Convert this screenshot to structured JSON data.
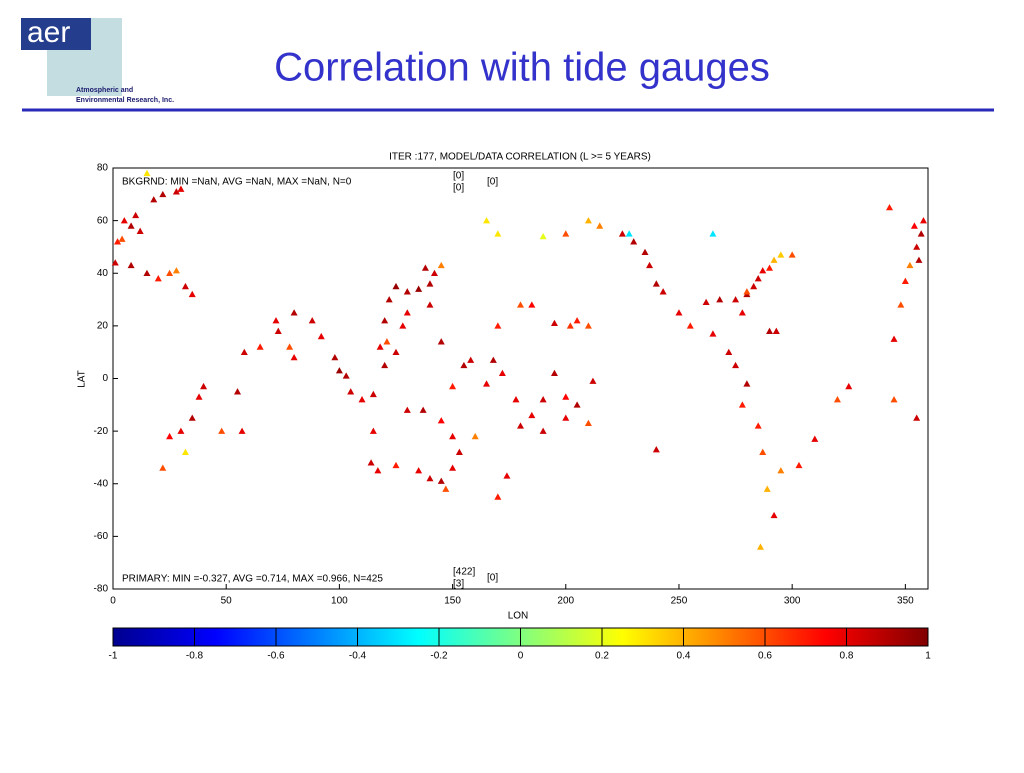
{
  "header": {
    "logo": "aer",
    "company_line1": "Atmospheric and",
    "company_line2": "Environmental Research, Inc.",
    "title": "Correlation with tide gauges"
  },
  "chart_data": {
    "type": "scatter",
    "title": "ITER :177, MODEL/DATA CORRELATION (L >= 5 YEARS)",
    "x_label": "LON",
    "y_label": "LAT",
    "annotations": [
      "BKGRND: MIN =NaN, AVG =NaN, MAX =NaN, N=0",
      "PRIMARY: MIN =-0.327, AVG =0.714, MAX =0.966, N=425"
    ],
    "bkgrnd_counts": [
      "[0]",
      "[0]",
      "[0]"
    ],
    "primary_counts": [
      "[422]",
      "[3]",
      "[0]"
    ],
    "xlim": [
      0,
      360
    ],
    "xticks": [
      0,
      50,
      100,
      150,
      200,
      250,
      300,
      350
    ],
    "ylim": [
      -80,
      80
    ],
    "yticks": [
      -80,
      -60,
      -40,
      -20,
      0,
      20,
      40,
      60,
      80
    ],
    "marker": "triangle",
    "x": [
      15,
      10,
      5,
      8,
      12,
      18,
      22,
      28,
      30,
      2,
      4,
      1,
      8,
      15,
      20,
      25,
      28,
      32,
      35,
      40,
      38,
      35,
      30,
      25,
      32,
      22,
      57,
      48,
      55,
      58,
      65,
      72,
      80,
      88,
      92,
      98,
      100,
      103,
      105,
      110,
      115,
      120,
      118,
      121,
      125,
      120,
      122,
      125,
      130,
      135,
      140,
      142,
      145,
      140,
      130,
      138,
      128,
      145,
      150,
      155,
      158,
      165,
      168,
      172,
      178,
      180,
      185,
      190,
      200,
      210,
      205,
      200,
      212,
      170,
      180,
      195,
      202,
      205,
      160,
      115,
      114,
      117,
      125,
      135,
      140,
      145,
      147,
      150,
      153,
      150,
      145,
      137,
      130,
      174,
      170,
      165,
      170,
      190,
      200,
      210,
      215,
      225,
      230,
      235,
      237,
      240,
      243,
      250,
      255,
      265,
      272,
      275,
      280,
      278,
      285,
      287,
      289,
      292,
      286,
      295,
      303,
      310,
      320,
      325,
      265,
      228,
      262,
      268,
      275,
      278,
      280,
      283,
      285,
      287,
      290,
      292,
      295,
      300,
      290,
      293,
      280,
      348,
      350,
      352,
      355,
      357,
      354,
      358,
      356,
      343,
      345,
      355,
      345,
      240,
      185,
      210,
      195,
      190,
      80,
      78,
      73
    ],
    "y": [
      78,
      62,
      60,
      58,
      56,
      68,
      70,
      71,
      72,
      52,
      53,
      44,
      43,
      40,
      38,
      40,
      41,
      35,
      32,
      -3,
      -7,
      -15,
      -20,
      -22,
      -28,
      -34,
      -20,
      -20,
      -5,
      10,
      12,
      22,
      25,
      22,
      16,
      8,
      3,
      1,
      -5,
      -8,
      -6,
      5,
      12,
      14,
      10,
      22,
      30,
      35,
      33,
      34,
      36,
      40,
      43,
      28,
      25,
      42,
      20,
      14,
      -3,
      5,
      7,
      -2,
      7,
      2,
      -8,
      -18,
      -14,
      -20,
      -15,
      -17,
      -10,
      -7,
      -1,
      20,
      28,
      21,
      20,
      22,
      -22,
      -20,
      -32,
      -35,
      -33,
      -35,
      -38,
      -39,
      -42,
      -34,
      -28,
      -22,
      -16,
      -12,
      -12,
      -37,
      -45,
      60,
      55,
      54,
      55,
      60,
      58,
      55,
      52,
      48,
      43,
      36,
      33,
      25,
      20,
      17,
      10,
      5,
      -2,
      -10,
      -18,
      -28,
      -42,
      -52,
      -64,
      -35,
      -33,
      -23,
      -8,
      -3,
      55,
      55,
      29,
      30,
      30,
      25,
      32,
      35,
      38,
      41,
      42,
      45,
      47,
      47,
      18,
      18,
      33,
      28,
      37,
      43,
      50,
      55,
      58,
      60,
      45,
      65,
      -8,
      -15,
      15,
      -27,
      28,
      20,
      2,
      -8,
      8,
      12,
      18
    ],
    "values": [
      0.3,
      0.85,
      0.8,
      0.9,
      0.85,
      0.9,
      0.9,
      0.85,
      0.8,
      0.7,
      0.6,
      0.85,
      0.9,
      0.9,
      0.7,
      0.6,
      0.5,
      0.85,
      0.8,
      0.85,
      0.8,
      0.9,
      0.8,
      0.75,
      0.3,
      0.6,
      0.8,
      0.6,
      0.9,
      0.85,
      0.7,
      0.8,
      0.9,
      0.85,
      0.8,
      0.9,
      0.95,
      0.9,
      0.85,
      0.8,
      0.85,
      0.9,
      0.8,
      0.6,
      0.85,
      0.9,
      0.9,
      0.95,
      0.9,
      0.95,
      0.9,
      0.85,
      0.5,
      0.85,
      0.8,
      0.9,
      0.8,
      0.9,
      0.7,
      0.9,
      0.85,
      0.8,
      0.9,
      0.8,
      0.8,
      0.85,
      0.8,
      0.85,
      0.8,
      0.6,
      0.9,
      0.75,
      0.85,
      0.7,
      0.6,
      0.85,
      0.65,
      0.7,
      0.5,
      0.8,
      0.85,
      0.8,
      0.7,
      0.8,
      0.85,
      0.9,
      0.6,
      0.8,
      0.85,
      0.8,
      0.75,
      0.9,
      0.85,
      0.8,
      0.7,
      0.3,
      0.3,
      0.2,
      0.6,
      0.4,
      0.5,
      0.85,
      0.9,
      0.9,
      0.85,
      0.9,
      0.85,
      0.8,
      0.7,
      0.8,
      0.85,
      0.85,
      0.9,
      0.7,
      0.7,
      0.6,
      0.4,
      0.8,
      0.4,
      0.5,
      0.7,
      0.8,
      0.6,
      0.8,
      -0.3,
      -0.3,
      0.85,
      0.9,
      0.85,
      0.8,
      0.9,
      0.85,
      0.85,
      0.8,
      0.7,
      0.4,
      0.35,
      0.6,
      0.9,
      0.85,
      0.6,
      0.6,
      0.7,
      0.5,
      0.85,
      0.9,
      0.75,
      0.8,
      0.9,
      0.7,
      0.6,
      0.85,
      0.8,
      0.85,
      0.75,
      0.6,
      0.9,
      0.85,
      0.8,
      0.6,
      0.85
    ],
    "colorbar": {
      "lim": [
        -1,
        1
      ],
      "ticks": [
        -1,
        -0.8,
        -0.6,
        -0.4,
        -0.2,
        0,
        0.2,
        0.4,
        0.6,
        0.8,
        1
      ],
      "colormap": [
        "#00008f",
        "#0000ff",
        "#0080ff",
        "#00ffff",
        "#80ff80",
        "#ffff00",
        "#ff8000",
        "#ff0000",
        "#800000"
      ]
    }
  }
}
